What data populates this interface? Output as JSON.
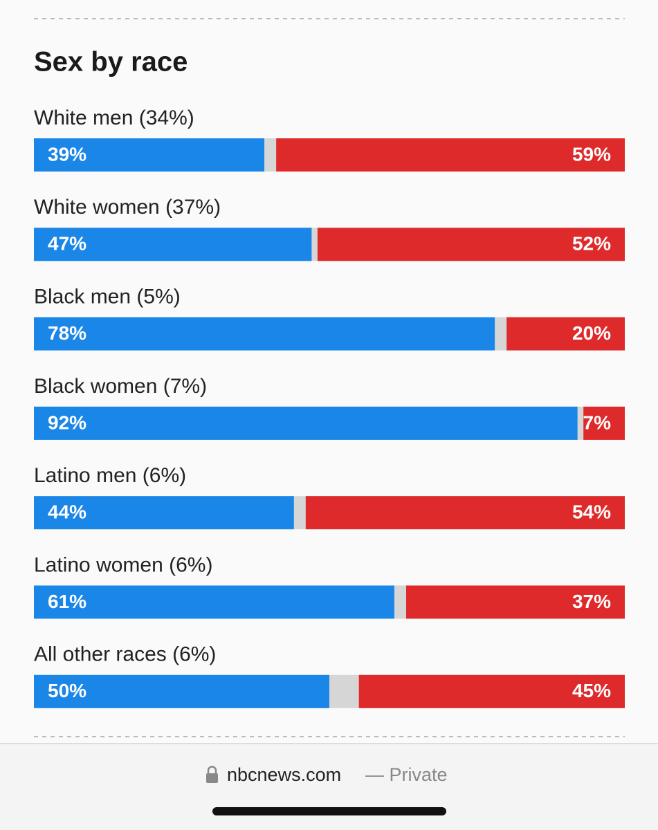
{
  "chart_data": {
    "type": "bar",
    "orientation": "horizontal",
    "stacked": true,
    "title": "Sex by race",
    "categories": [
      "White men (34%)",
      "White women (37%)",
      "Black men (5%)",
      "Black women (7%)",
      "Latino men (6%)",
      "Latino women (6%)",
      "All other races (6%)"
    ],
    "xlim": [
      0,
      100
    ],
    "series": [
      {
        "color": "#1a86e8",
        "align": "left",
        "values": [
          39,
          47,
          78,
          92,
          44,
          61,
          50
        ],
        "value_labels": [
          "39%",
          "47%",
          "78%",
          "92%",
          "44%",
          "61%",
          "50%"
        ]
      },
      {
        "color": "#de2a2a",
        "align": "right",
        "values": [
          59,
          52,
          20,
          7,
          54,
          37,
          45
        ],
        "value_labels": [
          "59%",
          "52%",
          "20%",
          "7%",
          "54%",
          "37%",
          "45%"
        ]
      }
    ]
  },
  "browser": {
    "domain": "nbcnews.com",
    "mode": "— Private"
  }
}
